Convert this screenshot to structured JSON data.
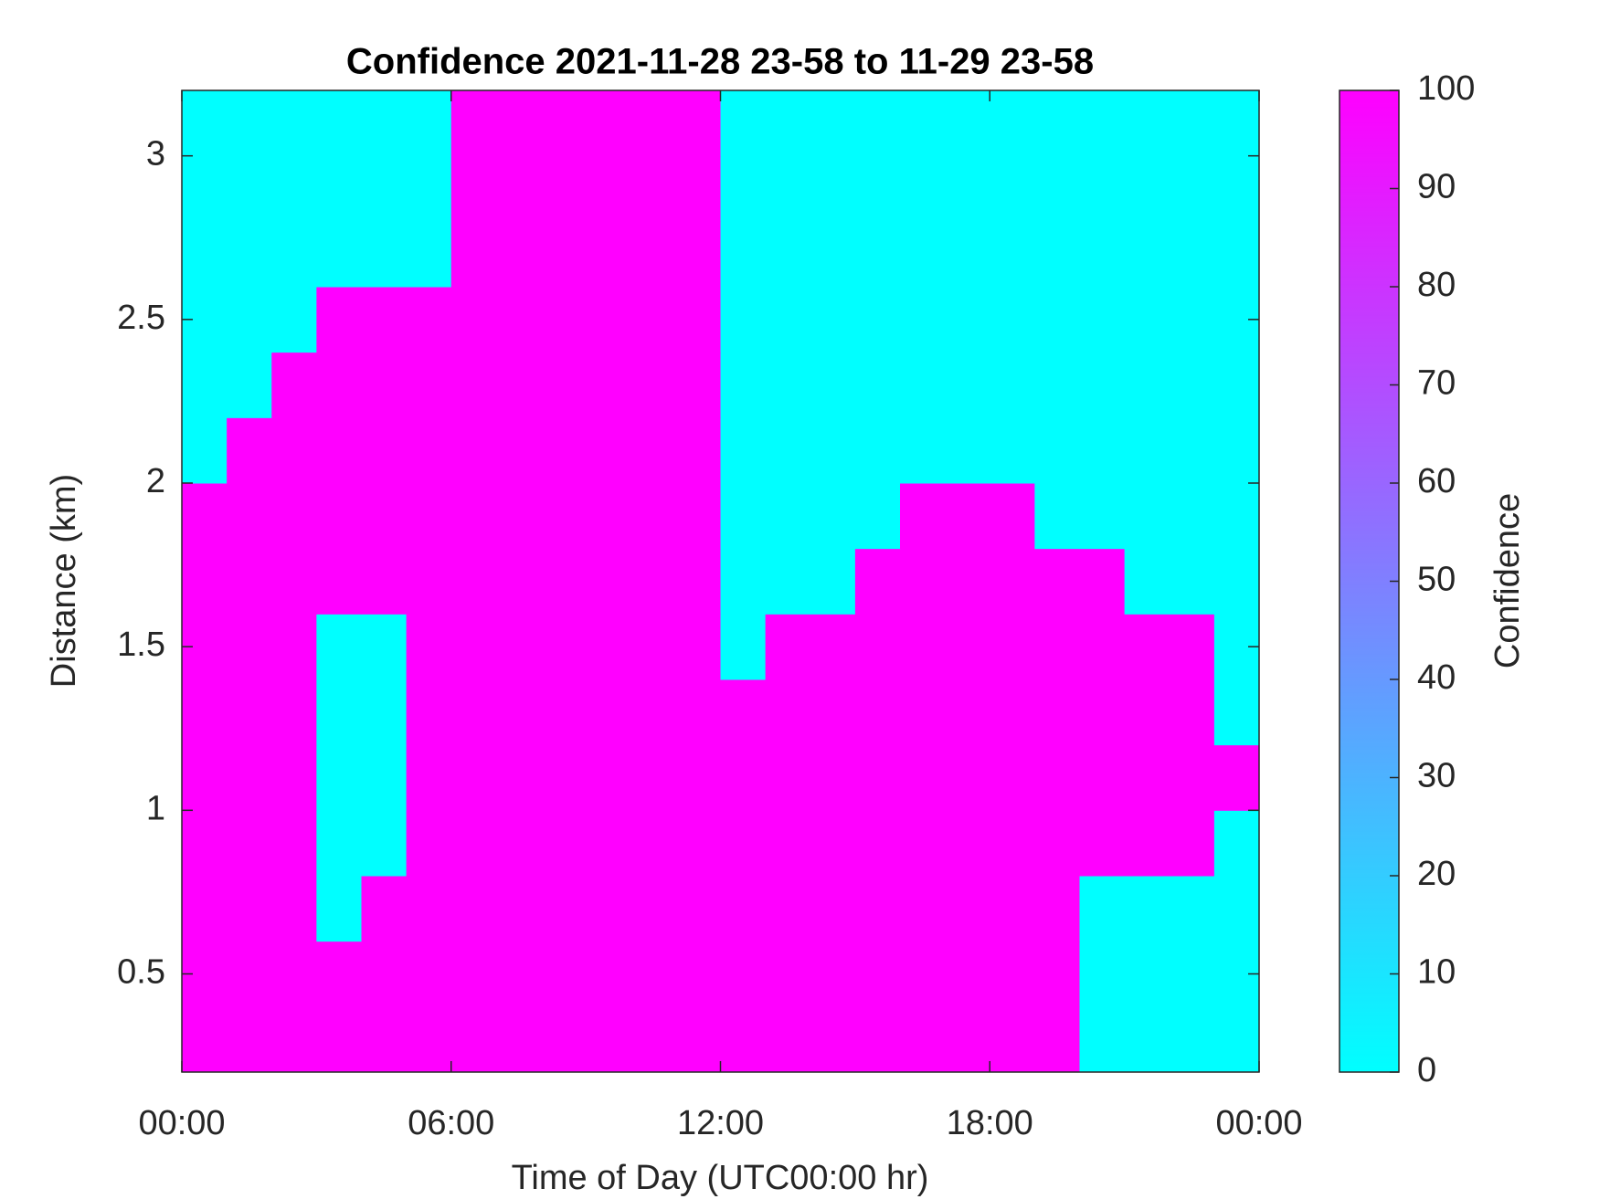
{
  "chart_data": {
    "type": "heatmap",
    "title": "Confidence 2021-11-28 23-58 to 11-29 23-58",
    "xlabel": "Time of Day (UTC00:00 hr)",
    "ylabel": "Distance (km)",
    "xlim": [
      0,
      24
    ],
    "ylim": [
      0.2,
      3.2
    ],
    "xticks": [
      {
        "value": 0,
        "label": "00:00"
      },
      {
        "value": 6,
        "label": "06:00"
      },
      {
        "value": 12,
        "label": "12:00"
      },
      {
        "value": 18,
        "label": "18:00"
      },
      {
        "value": 24,
        "label": "00:00"
      }
    ],
    "yticks": [
      0.5,
      1,
      1.5,
      2,
      2.5,
      3
    ],
    "xbins": [
      0,
      1,
      2,
      3,
      4,
      5,
      6,
      7,
      8,
      9,
      10,
      11,
      12,
      13,
      14,
      15,
      16,
      17,
      18,
      19,
      20,
      21,
      22,
      23,
      24
    ],
    "ybins": [
      0.2,
      0.4,
      0.6,
      0.8,
      1.0,
      1.2,
      1.4,
      1.6,
      1.8,
      2.0,
      2.2,
      2.4,
      2.6,
      2.8,
      3.0,
      3.2
    ],
    "z": [
      [
        100,
        100,
        100,
        100,
        100,
        100,
        100,
        100,
        100,
        100,
        100,
        100,
        100,
        100,
        100,
        100,
        100,
        100,
        100,
        100,
        0,
        0,
        0,
        0
      ],
      [
        100,
        100,
        100,
        100,
        100,
        100,
        100,
        100,
        100,
        100,
        100,
        100,
        100,
        100,
        100,
        100,
        100,
        100,
        100,
        100,
        0,
        0,
        0,
        0
      ],
      [
        100,
        100,
        100,
        0,
        100,
        100,
        100,
        100,
        100,
        100,
        100,
        100,
        100,
        100,
        100,
        100,
        100,
        100,
        100,
        100,
        0,
        0,
        0,
        0
      ],
      [
        100,
        100,
        100,
        0,
        0,
        100,
        100,
        100,
        100,
        100,
        100,
        100,
        100,
        100,
        100,
        100,
        100,
        100,
        100,
        100,
        100,
        100,
        100,
        0
      ],
      [
        100,
        100,
        100,
        0,
        0,
        100,
        100,
        100,
        100,
        100,
        100,
        100,
        100,
        100,
        100,
        100,
        100,
        100,
        100,
        100,
        100,
        100,
        100,
        100
      ],
      [
        100,
        100,
        100,
        0,
        0,
        100,
        100,
        100,
        100,
        100,
        100,
        100,
        100,
        100,
        100,
        100,
        100,
        100,
        100,
        100,
        100,
        100,
        100,
        0
      ],
      [
        100,
        100,
        100,
        0,
        0,
        100,
        100,
        100,
        100,
        100,
        100,
        100,
        0,
        100,
        100,
        100,
        100,
        100,
        100,
        100,
        100,
        100,
        100,
        0
      ],
      [
        100,
        100,
        100,
        100,
        100,
        100,
        100,
        100,
        100,
        100,
        100,
        100,
        0,
        0,
        0,
        100,
        100,
        100,
        100,
        100,
        100,
        0,
        0,
        0
      ],
      [
        100,
        100,
        100,
        100,
        100,
        100,
        100,
        100,
        100,
        100,
        100,
        100,
        0,
        0,
        0,
        0,
        100,
        100,
        100,
        0,
        0,
        0,
        0,
        0
      ],
      [
        0,
        100,
        100,
        100,
        100,
        100,
        100,
        100,
        100,
        100,
        100,
        100,
        0,
        0,
        0,
        0,
        0,
        0,
        0,
        0,
        0,
        0,
        0,
        0
      ],
      [
        0,
        0,
        100,
        100,
        100,
        100,
        100,
        100,
        100,
        100,
        100,
        100,
        0,
        0,
        0,
        0,
        0,
        0,
        0,
        0,
        0,
        0,
        0,
        0
      ],
      [
        0,
        0,
        0,
        100,
        100,
        100,
        100,
        100,
        100,
        100,
        100,
        100,
        0,
        0,
        0,
        0,
        0,
        0,
        0,
        0,
        0,
        0,
        0,
        0
      ],
      [
        0,
        0,
        0,
        0,
        0,
        0,
        100,
        100,
        100,
        100,
        100,
        100,
        0,
        0,
        0,
        0,
        0,
        0,
        0,
        0,
        0,
        0,
        0,
        0
      ],
      [
        0,
        0,
        0,
        0,
        0,
        0,
        100,
        100,
        100,
        100,
        100,
        100,
        0,
        0,
        0,
        0,
        0,
        0,
        0,
        0,
        0,
        0,
        0,
        0
      ],
      [
        0,
        0,
        0,
        0,
        0,
        0,
        100,
        100,
        100,
        100,
        100,
        100,
        0,
        0,
        0,
        0,
        0,
        0,
        0,
        0,
        0,
        0,
        0,
        0
      ]
    ],
    "colormap": [
      "#00ffff",
      "#ff00ff"
    ],
    "clim": [
      0,
      100
    ],
    "cticks": [
      0,
      10,
      20,
      30,
      40,
      50,
      60,
      70,
      80,
      90,
      100
    ],
    "clabel": "Confidence"
  }
}
